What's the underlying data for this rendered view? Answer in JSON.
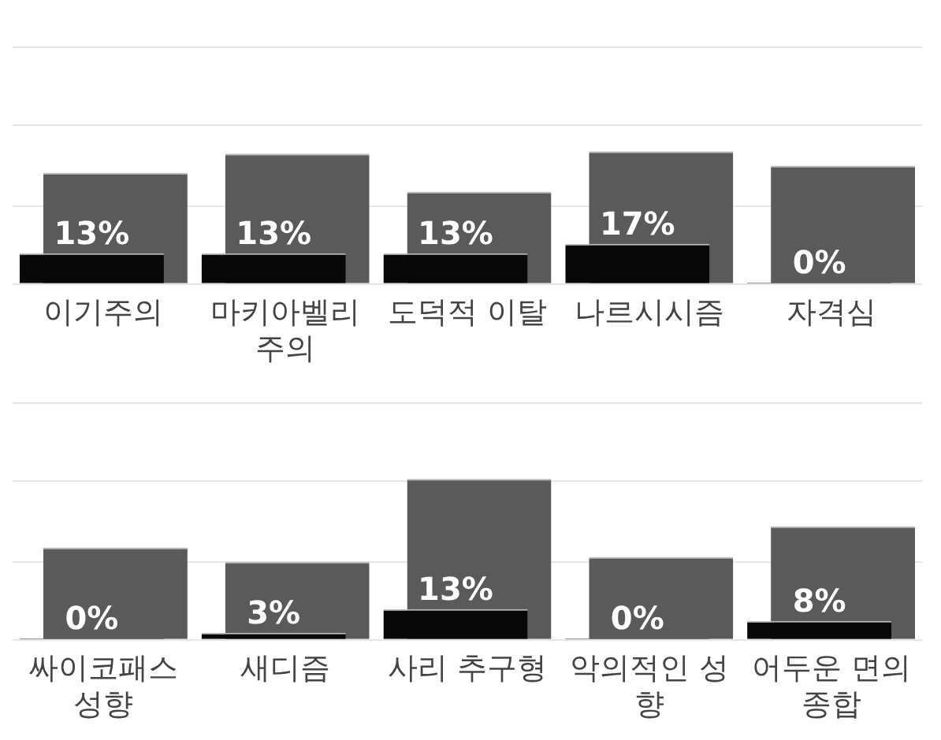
{
  "chart_data": [
    {
      "type": "bar",
      "grid": "y",
      "legend": false,
      "tick_labels": "x",
      "ylim": [
        0,
        100
      ],
      "yticks": [
        {
          "value": 0,
          "label": null
        },
        {
          "value": 33,
          "label": null
        },
        {
          "value": 67,
          "label": null
        },
        {
          "value": 100,
          "label": null
        }
      ],
      "categories": [
        "이기주의",
        "마키아벨리 주의",
        "도덕적 이탈",
        "나르시시즘",
        "자격심"
      ],
      "series": [
        {
          "color": "#5a5a5a",
          "values": [
            47,
            55,
            39,
            56,
            50
          ]
        },
        {
          "color": "#080808",
          "values": [
            13,
            13,
            13,
            17,
            0
          ],
          "value_labels": [
            "13%",
            "13%",
            "13%",
            "17%",
            "0%"
          ]
        }
      ]
    },
    {
      "type": "bar",
      "grid": "y",
      "legend": false,
      "tick_labels": "x",
      "ylim": [
        0,
        100
      ],
      "yticks": [
        {
          "value": 0,
          "label": null
        },
        {
          "value": 33,
          "label": null
        },
        {
          "value": 67,
          "label": null
        },
        {
          "value": 100,
          "label": null
        }
      ],
      "categories": [
        "싸이코패스 성향",
        "새디즘",
        "사리 추구형",
        "악의적인 성향",
        "어두운 면의 종합"
      ],
      "series": [
        {
          "color": "#5a5a5a",
          "values": [
            39,
            33,
            68,
            35,
            48
          ]
        },
        {
          "color": "#080808",
          "values": [
            0,
            3,
            13,
            0,
            8
          ],
          "value_labels": [
            "0%",
            "3%",
            "13%",
            "0%",
            "8%"
          ]
        }
      ]
    }
  ]
}
